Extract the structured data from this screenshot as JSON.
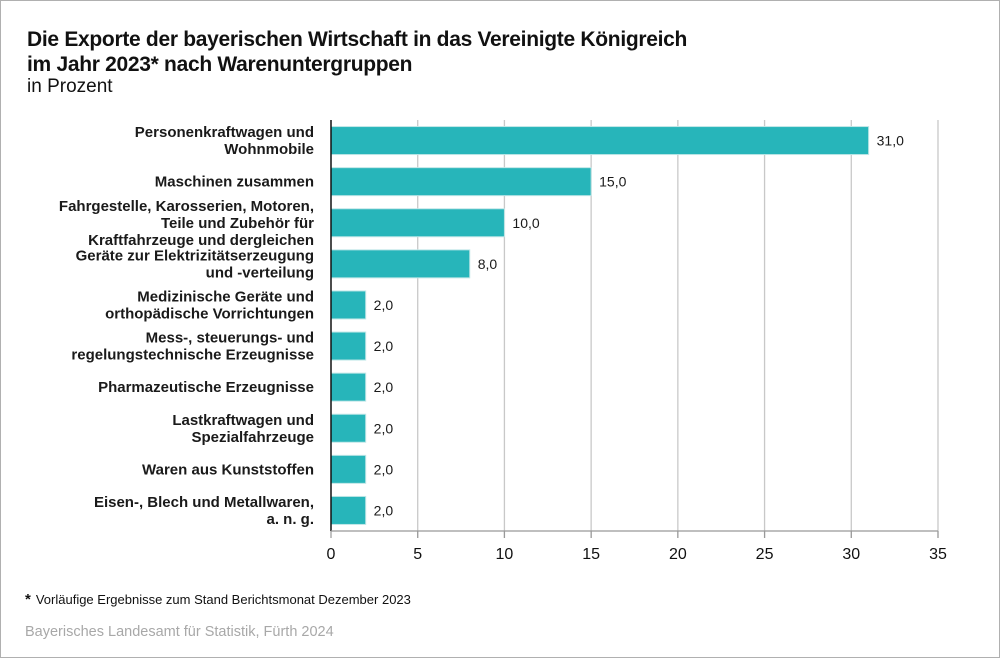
{
  "chart_data": {
    "type": "bar",
    "orientation": "horizontal",
    "title": "Die Exporte der bayerischen Wirtschaft in das Vereinigte Königreich im Jahr 2023* nach Warenuntergruppen",
    "title_lines": [
      "Die Exporte der bayerischen Wirtschaft in das Vereinigte Königreich",
      "im Jahr 2023* nach Warenuntergruppen"
    ],
    "subtitle": "in Prozent",
    "xlabel": "",
    "ylabel": "",
    "xlim": [
      0,
      35
    ],
    "xticks": [
      0,
      5,
      10,
      15,
      20,
      25,
      30,
      35
    ],
    "grid": true,
    "bar_color": "#27b5ba",
    "categories": [
      [
        "Personenkraftwagen und",
        "Wohnmobile"
      ],
      [
        "Maschinen zusammen"
      ],
      [
        "Fahrgestelle, Karosserien, Motoren,",
        "Teile und Zubehör für",
        "Kraftfahrzeuge und dergleichen"
      ],
      [
        "Geräte zur Elektrizitätserzeugung",
        "und -verteilung"
      ],
      [
        "Medizinische Geräte und",
        "orthopädische Vorrichtungen"
      ],
      [
        "Mess-, steuerungs- und",
        "regelungstechnische Erzeugnisse"
      ],
      [
        "Pharmazeutische Erzeugnisse"
      ],
      [
        "Lastkraftwagen und",
        "Spezialfahrzeuge"
      ],
      [
        "Waren aus Kunststoffen"
      ],
      [
        "Eisen-, Blech und Metallwaren,",
        "a. n. g."
      ]
    ],
    "values": [
      31.0,
      15.0,
      10.0,
      8.0,
      2.0,
      2.0,
      2.0,
      2.0,
      2.0,
      2.0
    ],
    "value_labels": [
      "31,0",
      "15,0",
      "10,0",
      "8,0",
      "2,0",
      "2,0",
      "2,0",
      "2,0",
      "2,0",
      "2,0"
    ]
  },
  "footnote": "Vorläufige Ergebnisse zum Stand Berichtsmonat Dezember 2023",
  "footnote_marker": "*",
  "source": "Bayerisches Landesamt für Statistik, Fürth 2024"
}
